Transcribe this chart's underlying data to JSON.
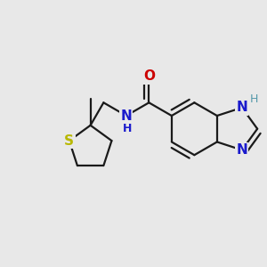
{
  "background_color": "#e8e8e8",
  "bond_color": "#1a1a1a",
  "bond_width": 1.6,
  "dbo": 0.055,
  "atoms": {
    "O": {
      "color": "#cc0000",
      "fontsize": 11
    },
    "N": {
      "color": "#1a1acc",
      "fontsize": 11
    },
    "NH": {
      "color": "#1a1acc",
      "fontsize": 11
    },
    "S": {
      "color": "#b8b800",
      "fontsize": 11
    },
    "H_teal": {
      "color": "#5599aa",
      "fontsize": 9
    }
  },
  "figsize": [
    3.0,
    3.0
  ],
  "dpi": 100,
  "xlim": [
    -0.2,
    2.6
  ],
  "ylim": [
    -1.3,
    1.1
  ]
}
